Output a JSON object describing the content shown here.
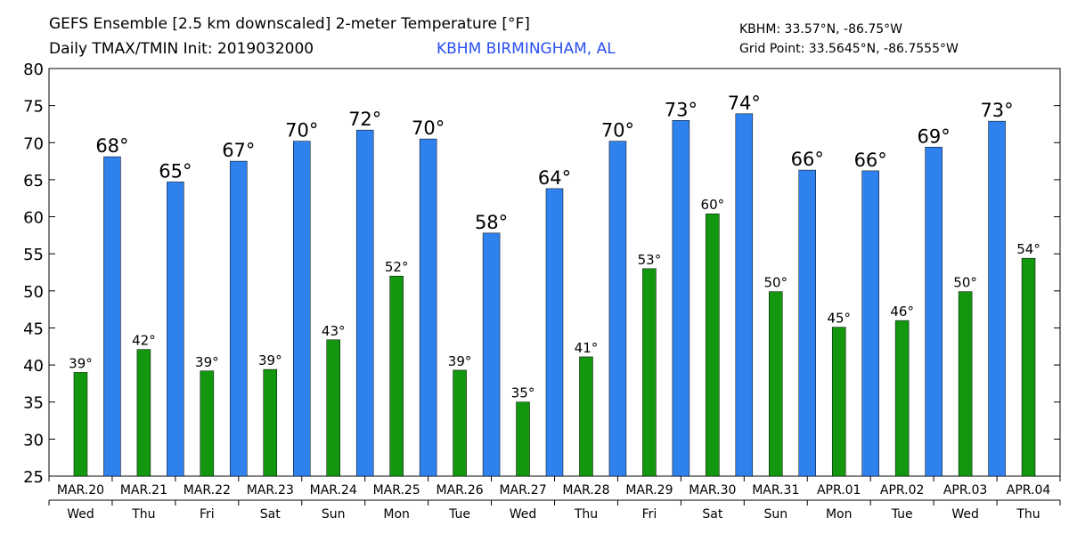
{
  "chart_data": {
    "type": "bar",
    "title": "GEFS Ensemble [2.5 km downscaled] 2-meter Temperature [°F]",
    "subtitle": "Daily TMAX/TMIN Init: 2019032000",
    "station": "KBHM BIRMINGHAM, AL",
    "station_coords": "KBHM: 33.57°N, -86.75°W",
    "grid_point": "Grid Point: 33.5645°N, -86.7555°W",
    "categories": [
      "MAR.20",
      "MAR.21",
      "MAR.22",
      "MAR.23",
      "MAR.24",
      "MAR.25",
      "MAR.26",
      "MAR.27",
      "MAR.28",
      "MAR.29",
      "MAR.30",
      "MAR.31",
      "APR.01",
      "APR.02",
      "APR.03",
      "APR.04"
    ],
    "weekdays": [
      "Wed",
      "Thu",
      "Fri",
      "Sat",
      "Sun",
      "Mon",
      "Tue",
      "Wed",
      "Thu",
      "Fri",
      "Sat",
      "Sun",
      "Mon",
      "Tue",
      "Wed",
      "Thu"
    ],
    "series": [
      {
        "color": "#13970f",
        "values": [
          39.0,
          42.1,
          39.2,
          39.4,
          43.4,
          52.0,
          39.3,
          35.0,
          41.1,
          53.0,
          60.4,
          49.9,
          45.1,
          46.0,
          49.9,
          54.4
        ],
        "value_labels": [
          "39°",
          "42°",
          "39°",
          "39°",
          "43°",
          "52°",
          "39°",
          "35°",
          "41°",
          "53°",
          "60°",
          "50°",
          "45°",
          "46°",
          "50°",
          "54°"
        ]
      },
      {
        "color": "#2f81ee",
        "values": [
          68.1,
          64.7,
          67.5,
          70.2,
          71.7,
          70.5,
          57.8,
          63.8,
          70.2,
          73.0,
          73.9,
          66.3,
          66.2,
          69.4,
          72.9,
          null
        ],
        "value_labels": [
          "68°",
          "65°",
          "67°",
          "70°",
          "72°",
          "70°",
          "58°",
          "64°",
          "70°",
          "73°",
          "74°",
          "66°",
          "66°",
          "69°",
          "73°",
          null
        ]
      }
    ],
    "ylim": [
      25,
      80
    ],
    "yticks": [
      25,
      30,
      35,
      40,
      45,
      50,
      55,
      60,
      65,
      70,
      75,
      80
    ]
  }
}
